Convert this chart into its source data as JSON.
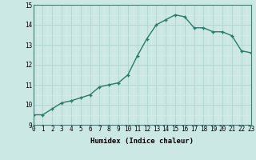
{
  "title": "",
  "xlabel": "Humidex (Indice chaleur)",
  "ylabel": "",
  "x": [
    0,
    1,
    2,
    3,
    4,
    5,
    6,
    7,
    8,
    9,
    10,
    11,
    12,
    13,
    14,
    15,
    16,
    17,
    18,
    19,
    20,
    21,
    22,
    23
  ],
  "y": [
    9.5,
    9.5,
    9.8,
    10.1,
    10.2,
    10.35,
    10.5,
    10.9,
    11.0,
    11.1,
    11.5,
    12.45,
    13.3,
    14.0,
    14.25,
    14.5,
    14.4,
    13.85,
    13.85,
    13.65,
    13.65,
    13.45,
    12.7,
    12.6
  ],
  "ylim": [
    9,
    15
  ],
  "xlim": [
    0,
    23
  ],
  "yticks": [
    9,
    10,
    11,
    12,
    13,
    14,
    15
  ],
  "xticks": [
    0,
    1,
    2,
    3,
    4,
    5,
    6,
    7,
    8,
    9,
    10,
    11,
    12,
    13,
    14,
    15,
    16,
    17,
    18,
    19,
    20,
    21,
    22,
    23
  ],
  "line_color": "#2a7a6a",
  "marker": "+",
  "marker_size": 3,
  "bg_color": "#cce8e4",
  "grid_color_major": "#b0d4cf",
  "grid_color_minor": "#d4e8e5",
  "axis_color": "#4a7a74",
  "tick_fontsize": 5.5,
  "label_fontsize": 6.5,
  "linewidth": 1.0
}
